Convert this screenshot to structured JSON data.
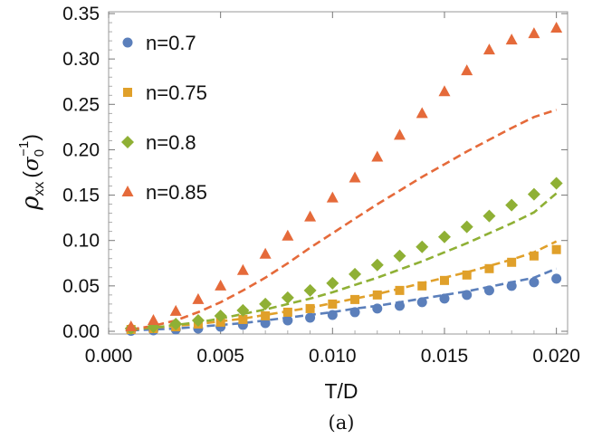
{
  "caption": "(a)",
  "chart_data": {
    "type": "scatter",
    "xlabel": "T/D",
    "ylabel": {
      "symbol": "ρ",
      "subscript": "xx",
      "unit_open": "(",
      "unit_symbol": "σ",
      "unit_sub": "0",
      "unit_sup": "−1",
      "unit_close": ")"
    },
    "xlim": [
      0,
      0.0205
    ],
    "ylim": [
      -0.003,
      0.352
    ],
    "xticks": [
      {
        "v": 0.0,
        "label": "0.000"
      },
      {
        "v": 0.005,
        "label": "0.005"
      },
      {
        "v": 0.01,
        "label": "0.010"
      },
      {
        "v": 0.015,
        "label": "0.015"
      },
      {
        "v": 0.02,
        "label": "0.020"
      }
    ],
    "yticks": [
      {
        "v": 0.0,
        "label": "0.00"
      },
      {
        "v": 0.05,
        "label": "0.05"
      },
      {
        "v": 0.1,
        "label": "0.10"
      },
      {
        "v": 0.15,
        "label": "0.15"
      },
      {
        "v": 0.2,
        "label": "0.20"
      },
      {
        "v": 0.25,
        "label": "0.25"
      },
      {
        "v": 0.3,
        "label": "0.30"
      },
      {
        "v": 0.35,
        "label": "0.35"
      }
    ],
    "legend_position": "top-left",
    "grid": false,
    "x": [
      0.001,
      0.002,
      0.003,
      0.004,
      0.005,
      0.006,
      0.007,
      0.008,
      0.009,
      0.01,
      0.011,
      0.012,
      0.013,
      0.014,
      0.015,
      0.016,
      0.017,
      0.018,
      0.019,
      0.02
    ],
    "series": [
      {
        "name": "n=0.7",
        "color": "#5b7fbb",
        "marker": "circle",
        "points": [
          0.0005,
          0.001,
          0.002,
          0.003,
          0.005,
          0.007,
          0.009,
          0.012,
          0.015,
          0.018,
          0.021,
          0.025,
          0.028,
          0.032,
          0.036,
          0.04,
          0.045,
          0.05,
          0.054,
          0.058
        ],
        "fit": [
          0.001,
          0.002,
          0.003,
          0.005,
          0.007,
          0.009,
          0.012,
          0.015,
          0.018,
          0.021,
          0.025,
          0.028,
          0.032,
          0.036,
          0.04,
          0.044,
          0.049,
          0.054,
          0.059,
          0.069
        ]
      },
      {
        "name": "n=0.75",
        "color": "#e0a02a",
        "marker": "square",
        "points": [
          0.002,
          0.003,
          0.005,
          0.008,
          0.01,
          0.013,
          0.017,
          0.021,
          0.025,
          0.03,
          0.035,
          0.04,
          0.045,
          0.05,
          0.056,
          0.062,
          0.069,
          0.076,
          0.083,
          0.09
        ],
        "fit": [
          0.002,
          0.004,
          0.006,
          0.008,
          0.011,
          0.014,
          0.018,
          0.022,
          0.026,
          0.031,
          0.036,
          0.041,
          0.047,
          0.053,
          0.059,
          0.065,
          0.072,
          0.079,
          0.087,
          0.099
        ]
      },
      {
        "name": "n=0.8",
        "color": "#8fb035",
        "marker": "diamond",
        "points": [
          0.003,
          0.005,
          0.008,
          0.012,
          0.017,
          0.023,
          0.03,
          0.037,
          0.045,
          0.053,
          0.063,
          0.073,
          0.083,
          0.093,
          0.104,
          0.115,
          0.127,
          0.139,
          0.151,
          0.163
        ],
        "fit": [
          0.002,
          0.004,
          0.007,
          0.01,
          0.014,
          0.019,
          0.024,
          0.03,
          0.036,
          0.043,
          0.051,
          0.059,
          0.068,
          0.077,
          0.087,
          0.097,
          0.108,
          0.119,
          0.131,
          0.152
        ]
      },
      {
        "name": "n=0.85",
        "color": "#e56a3a",
        "marker": "triangle",
        "points": [
          0.005,
          0.012,
          0.022,
          0.035,
          0.05,
          0.067,
          0.085,
          0.105,
          0.126,
          0.147,
          0.169,
          0.192,
          0.216,
          0.24,
          0.264,
          0.287,
          0.31,
          0.321,
          0.328,
          0.334
        ],
        "fit": [
          0.002,
          0.006,
          0.012,
          0.021,
          0.032,
          0.045,
          0.059,
          0.075,
          0.092,
          0.108,
          0.124,
          0.14,
          0.155,
          0.17,
          0.184,
          0.198,
          0.211,
          0.224,
          0.236,
          0.244
        ]
      }
    ]
  }
}
